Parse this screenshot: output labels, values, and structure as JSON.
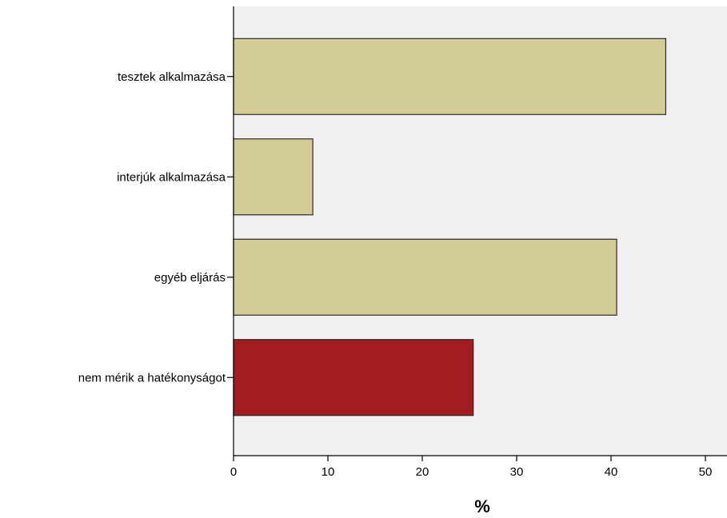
{
  "chart_data": {
    "type": "bar",
    "orientation": "horizontal",
    "categories": [
      "tesztek alkalmazása",
      "interjúk alkalmazása",
      "egyéb eljárás",
      "nem mérik a hatékonyságot"
    ],
    "values": [
      45.8,
      8.4,
      40.6,
      25.4
    ],
    "colors": [
      "#d4cc96",
      "#d4cc96",
      "#d4cc96",
      "#a31c1f"
    ],
    "xlabel": "%",
    "ylabel": "",
    "xlim": [
      0,
      52
    ],
    "xticks": [
      0,
      10,
      20,
      30,
      40,
      50
    ],
    "grid": false,
    "plot_background": "#f0f0f0",
    "legend": "none"
  }
}
